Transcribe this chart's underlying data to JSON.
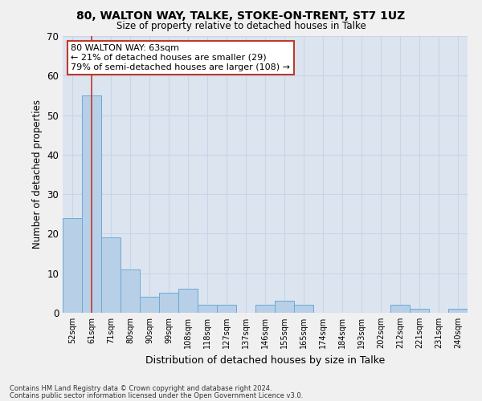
{
  "title1": "80, WALTON WAY, TALKE, STOKE-ON-TRENT, ST7 1UZ",
  "title2": "Size of property relative to detached houses in Talke",
  "xlabel": "Distribution of detached houses by size in Talke",
  "ylabel": "Number of detached properties",
  "categories": [
    "52sqm",
    "61sqm",
    "71sqm",
    "80sqm",
    "90sqm",
    "99sqm",
    "108sqm",
    "118sqm",
    "127sqm",
    "137sqm",
    "146sqm",
    "155sqm",
    "165sqm",
    "174sqm",
    "184sqm",
    "193sqm",
    "202sqm",
    "212sqm",
    "221sqm",
    "231sqm",
    "240sqm"
  ],
  "values": [
    24,
    55,
    19,
    11,
    4,
    5,
    6,
    2,
    2,
    0,
    2,
    3,
    2,
    0,
    0,
    0,
    0,
    2,
    1,
    0,
    1
  ],
  "bar_color": "#b8cfe8",
  "bar_edge_color": "#6aaad4",
  "vline_x": 1,
  "vline_color": "#c0392b",
  "annotation_text": "80 WALTON WAY: 63sqm\n← 21% of detached houses are smaller (29)\n79% of semi-detached houses are larger (108) →",
  "annotation_box_color": "#ffffff",
  "annotation_box_edge_color": "#c0392b",
  "ylim": [
    0,
    70
  ],
  "yticks": [
    0,
    10,
    20,
    30,
    40,
    50,
    60,
    70
  ],
  "grid_color": "#c8d4e8",
  "bg_color": "#dce4f0",
  "fig_color": "#f0f0f0",
  "footer1": "Contains HM Land Registry data © Crown copyright and database right 2024.",
  "footer2": "Contains public sector information licensed under the Open Government Licence v3.0."
}
